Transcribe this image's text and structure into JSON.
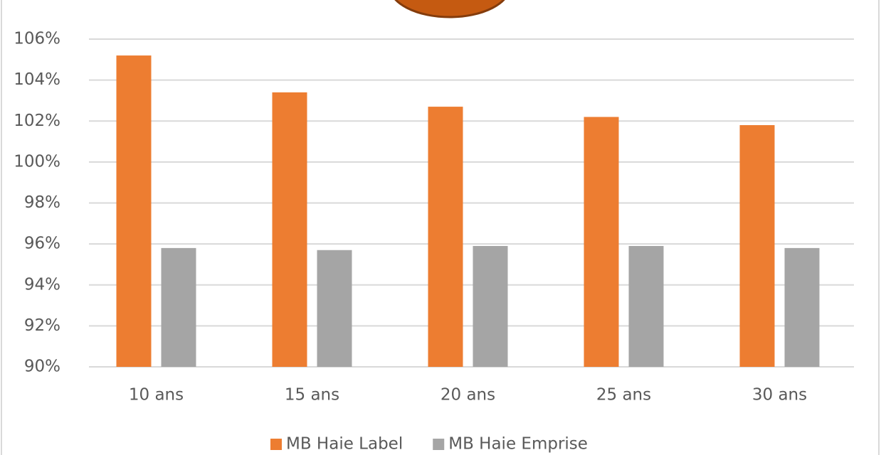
{
  "chart_data": {
    "type": "bar",
    "categories": [
      "10 ans",
      "15 ans",
      "20 ans",
      "25 ans",
      "30 ans"
    ],
    "series": [
      {
        "name": "MB Haie Label",
        "color": "#ed7d31",
        "values": [
          105.2,
          103.4,
          102.7,
          102.2,
          101.8
        ]
      },
      {
        "name": "MB Haie Emprise",
        "color": "#a5a5a5",
        "values": [
          95.8,
          95.7,
          95.9,
          95.9,
          95.8
        ]
      }
    ],
    "ylim": [
      90,
      106
    ],
    "yticks": [
      {
        "value": 90,
        "label": "90%"
      },
      {
        "value": 92,
        "label": "92%"
      },
      {
        "value": 94,
        "label": "94%"
      },
      {
        "value": 96,
        "label": "96%"
      },
      {
        "value": 98,
        "label": "98%"
      },
      {
        "value": 100,
        "label": "100%"
      },
      {
        "value": 102,
        "label": "102%"
      },
      {
        "value": 104,
        "label": "104%"
      },
      {
        "value": 106,
        "label": "106%"
      }
    ],
    "grid": true,
    "legend": "bottom"
  }
}
